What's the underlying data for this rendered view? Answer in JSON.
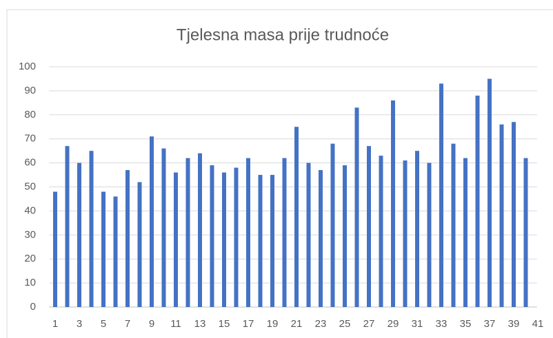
{
  "chart_data": {
    "type": "bar",
    "title": "Tjelesna masa prije trudnoće",
    "categories": [
      "1",
      null,
      "3",
      null,
      "5",
      null,
      "7",
      null,
      "9",
      null,
      "11",
      null,
      "13",
      null,
      "15",
      null,
      "17",
      null,
      "19",
      null,
      "21",
      null,
      "23",
      null,
      "25",
      null,
      "27",
      null,
      "29",
      null,
      "31",
      null,
      "33",
      null,
      "35",
      null,
      "37",
      null,
      "39",
      null,
      "41"
    ],
    "values": [
      48,
      67,
      60,
      65,
      48,
      46,
      57,
      52,
      71,
      66,
      56,
      62,
      64,
      59,
      56,
      58,
      62,
      55,
      55,
      62,
      75,
      60,
      57,
      68,
      59,
      83,
      67,
      63,
      86,
      61,
      65,
      60,
      93,
      68,
      62,
      88,
      95,
      76,
      77,
      62,
      null
    ],
    "color": "#4472c4",
    "ylim": [
      0,
      100
    ],
    "yticks": [
      0,
      10,
      20,
      30,
      40,
      50,
      60,
      70,
      80,
      90,
      100
    ],
    "grid": true
  }
}
